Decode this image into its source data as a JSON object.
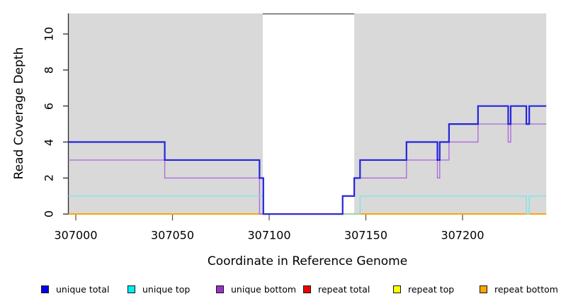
{
  "figure": {
    "background": "#FFFFFF"
  },
  "chart_data": {
    "type": "line",
    "subtype": "step-coverage-profile",
    "title": "",
    "xlabel": "Coordinate in Reference Genome",
    "ylabel": "Read Coverage Depth",
    "xlim": [
      306996.15,
      307243.3
    ],
    "ylim": [
      0,
      11.14
    ],
    "x_ticks": [
      307000,
      307050,
      307100,
      307150,
      307200
    ],
    "x_tick_labels": [
      "307000",
      "307050",
      "307100",
      "307150",
      "307200"
    ],
    "y_ticks": [
      0,
      2,
      4,
      6,
      8,
      10
    ],
    "y_tick_labels": [
      "0",
      "2",
      "4",
      "6",
      "8",
      "10"
    ],
    "grid": false,
    "shaded_regions": [
      {
        "from": 306996.15,
        "to": 307096.7,
        "color": "#D9D9D9"
      },
      {
        "from": 307144.0,
        "to": 307243.3,
        "color": "#D9D9D9"
      }
    ],
    "gap_top_border": {
      "from": 307096.7,
      "to": 307144.0,
      "color": "#4D4D4D"
    },
    "axis_color": "#2B2B2B",
    "x_tick_color": "#4D4D4D",
    "series": [
      {
        "name": "unique total",
        "line_color": "#2525DC",
        "line_width": 2.2,
        "steps": [
          [
            306996.15,
            4
          ],
          [
            307046,
            3
          ],
          [
            307095,
            2
          ],
          [
            307097,
            0
          ],
          [
            307138,
            1
          ],
          [
            307144,
            2
          ],
          [
            307147,
            3
          ],
          [
            307171,
            4
          ],
          [
            307187,
            3
          ],
          [
            307188.2,
            4
          ],
          [
            307193,
            5
          ],
          [
            307208,
            6
          ],
          [
            307223.6,
            5
          ],
          [
            307224.9,
            6
          ],
          [
            307233,
            5
          ],
          [
            307234.5,
            6
          ]
        ]
      },
      {
        "name": "unique top",
        "line_color": "#7EE6E3",
        "line_width": 1.4,
        "steps": [
          [
            306996.15,
            1
          ],
          [
            307097,
            0
          ],
          [
            307147,
            1
          ],
          [
            307233,
            0
          ],
          [
            307234.5,
            1
          ]
        ]
      },
      {
        "name": "unique bottom",
        "line_color": "#AE6EDD",
        "line_width": 1.4,
        "steps": [
          [
            306996.15,
            3
          ],
          [
            307046,
            2
          ],
          [
            307095,
            0
          ],
          [
            307138,
            1
          ],
          [
            307144,
            2
          ],
          [
            307171,
            3
          ],
          [
            307187,
            2
          ],
          [
            307188.2,
            3
          ],
          [
            307193,
            4
          ],
          [
            307208,
            5
          ],
          [
            307223.6,
            4
          ],
          [
            307224.9,
            5
          ]
        ]
      },
      {
        "name": "repeat total",
        "line_color": "#DD0000",
        "line_width": 1.6,
        "steps": [
          [
            306996.15,
            0
          ]
        ]
      },
      {
        "name": "repeat top",
        "line_color": "#FFFF00",
        "line_width": 1.6,
        "steps": [
          [
            306996.15,
            0
          ]
        ]
      },
      {
        "name": "repeat bottom",
        "line_color": "#FFA500",
        "line_width": 1.8,
        "steps": [
          [
            306996.15,
            0
          ]
        ]
      }
    ],
    "legend": {
      "position": "bottom-horizontal",
      "entries": [
        {
          "label": "unique total",
          "color": "#0000EE"
        },
        {
          "label": "unique top",
          "color": "#00EEEE"
        },
        {
          "label": "unique bottom",
          "color": "#9932CC"
        },
        {
          "label": "repeat total",
          "color": "#EE0000"
        },
        {
          "label": "repeat top",
          "color": "#FFFF00"
        },
        {
          "label": "repeat bottom",
          "color": "#FFA500"
        }
      ]
    }
  }
}
